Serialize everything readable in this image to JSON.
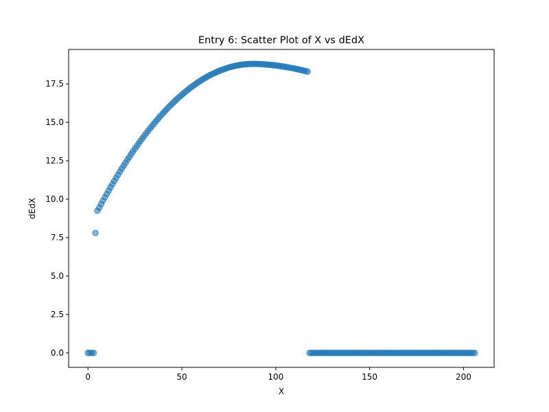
{
  "chart_data": {
    "type": "scatter",
    "title": "Entry 6: Scatter Plot of X vs dEdX",
    "xlabel": "X",
    "ylabel": "dEdX",
    "xlim": [
      -10.3,
      216.3
    ],
    "ylim": [
      -0.94,
      19.74
    ],
    "xticks": [
      0,
      50,
      100,
      150,
      200
    ],
    "yticks": [
      0.0,
      2.5,
      5.0,
      7.5,
      10.0,
      12.5,
      15.0,
      17.5
    ],
    "xtick_labels": [
      "0",
      "50",
      "100",
      "150",
      "200"
    ],
    "ytick_labels": [
      "0.0",
      "2.5",
      "5.0",
      "7.5",
      "10.0",
      "12.5",
      "15.0",
      "17.5"
    ],
    "grid": false,
    "marker_color": "#1f77b4",
    "marker_alpha": 0.55,
    "curve_segment": {
      "x_start": 5,
      "x_end": 117,
      "x_peak": 88,
      "y_peak": 18.8,
      "y_end": 18.3,
      "first_y": 9.25,
      "second_y": 9.45
    },
    "series": [
      {
        "points": [
          [
            0,
            0
          ],
          [
            1,
            0
          ],
          [
            2,
            0
          ],
          [
            3,
            0
          ],
          [
            4,
            7.8
          ]
        ],
        "zero_tail": {
          "x_start": 118,
          "x_end": 206,
          "y": 0
        }
      }
    ]
  }
}
